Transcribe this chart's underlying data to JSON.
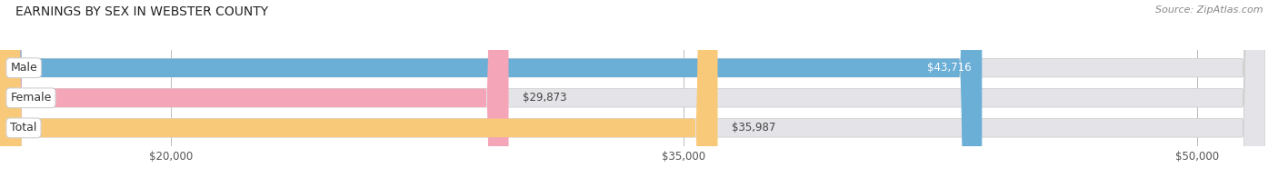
{
  "title": "EARNINGS BY SEX IN WEBSTER COUNTY",
  "source": "Source: ZipAtlas.com",
  "categories": [
    "Male",
    "Female",
    "Total"
  ],
  "values": [
    43716,
    29873,
    35987
  ],
  "bar_colors": [
    "#6baed6",
    "#f4a6b8",
    "#f9c97a"
  ],
  "bar_bg_color": "#e4e4e8",
  "bar_labels": [
    "$43,716",
    "$29,873",
    "$35,987"
  ],
  "x_min": 15000,
  "x_max": 52000,
  "x_ticks": [
    20000,
    35000,
    50000
  ],
  "x_tick_labels": [
    "$20,000",
    "$35,000",
    "$50,000"
  ],
  "bar_height": 0.62,
  "fig_width": 14.06,
  "fig_height": 1.96,
  "title_fontsize": 10,
  "label_fontsize": 9,
  "tick_fontsize": 8.5,
  "source_fontsize": 8,
  "value_label_fontsize": 8.5,
  "background_color": "#ffffff"
}
